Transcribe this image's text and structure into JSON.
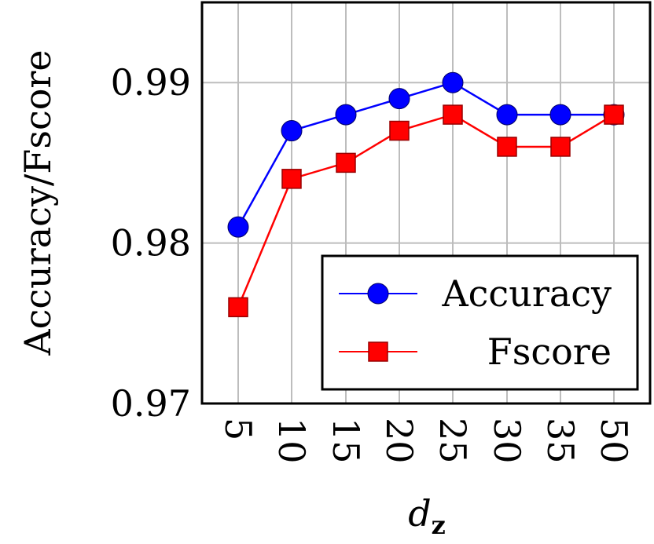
{
  "chart_data": {
    "type": "line",
    "categories": [
      "5",
      "10",
      "15",
      "20",
      "25",
      "30",
      "35",
      "50"
    ],
    "series": [
      {
        "name": "Accuracy",
        "values": [
          0.981,
          0.987,
          0.988,
          0.989,
          0.99,
          0.988,
          0.988,
          0.988
        ],
        "color": "#0000ff",
        "marker": "circle"
      },
      {
        "name": "Fscore",
        "values": [
          0.976,
          0.984,
          0.985,
          0.987,
          0.988,
          0.986,
          0.986,
          0.988
        ],
        "color": "#ff0000",
        "marker": "square"
      }
    ],
    "ylabel": "Accuracy/Fscore",
    "xlabel_main": "d",
    "xlabel_sub": "z",
    "ylim": [
      0.97,
      0.995
    ],
    "yticks": [
      "0.97",
      "0.98",
      "0.99"
    ],
    "ytick_values": [
      0.97,
      0.98,
      0.99
    ],
    "grid": true,
    "legend_position": "bottom-right"
  }
}
